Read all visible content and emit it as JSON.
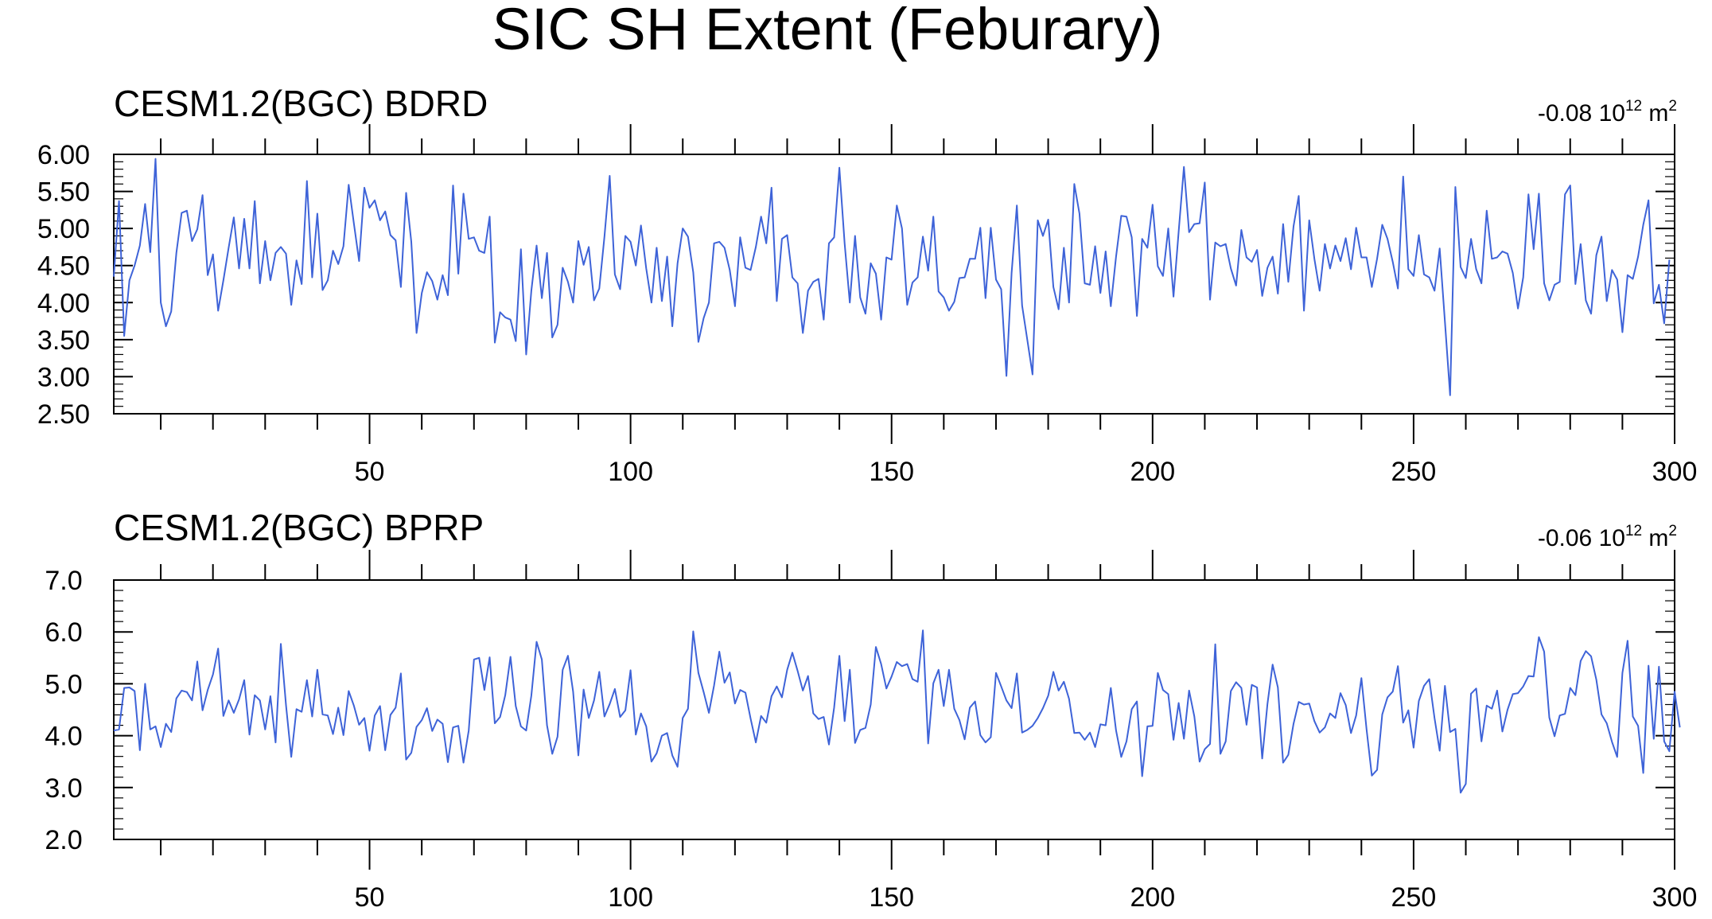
{
  "figure": {
    "title": "SIC SH Extent (Feburary)"
  },
  "chart_data": [
    {
      "type": "line",
      "title": "CESM1.2(BGC) BDRD",
      "annotation": {
        "value": "-0.08",
        "unit_base": "10",
        "unit_exp": "12",
        "unit_suffix": "m",
        "unit_suffix_exp": "2"
      },
      "xlabel": "",
      "ylabel": "",
      "xlim": [
        1,
        300
      ],
      "ylim": [
        2.5,
        6.0
      ],
      "yticks": [
        "2.50",
        "3.00",
        "3.50",
        "4.00",
        "4.50",
        "5.00",
        "5.50",
        "6.00"
      ],
      "ytick_values": [
        2.5,
        3.0,
        3.5,
        4.0,
        4.5,
        5.0,
        5.5,
        6.0
      ],
      "xticks": [
        "50",
        "100",
        "150",
        "200",
        "250",
        "300"
      ],
      "xtick_values": [
        50,
        100,
        150,
        200,
        250,
        300
      ],
      "grid": false,
      "line_color": "#3e63d8",
      "x_start": 1,
      "values": [
        4.35,
        5.37,
        3.55,
        4.3,
        4.5,
        4.77,
        5.33,
        4.68,
        5.94,
        4.0,
        3.68,
        3.88,
        4.67,
        5.21,
        5.24,
        4.83,
        4.99,
        5.45,
        4.37,
        4.65,
        3.89,
        4.3,
        4.74,
        5.15,
        4.46,
        5.13,
        4.46,
        5.37,
        4.26,
        4.83,
        4.3,
        4.67,
        4.75,
        4.66,
        3.97,
        4.57,
        4.25,
        5.64,
        4.34,
        5.2,
        4.17,
        4.3,
        4.7,
        4.52,
        4.76,
        5.59,
        5.07,
        4.56,
        5.55,
        5.28,
        5.38,
        5.11,
        5.23,
        4.91,
        4.84,
        4.21,
        5.48,
        4.82,
        3.59,
        4.13,
        4.41,
        4.29,
        4.04,
        4.37,
        4.1,
        5.58,
        4.39,
        5.47,
        4.86,
        4.88,
        4.7,
        4.67,
        5.16,
        3.46,
        3.87,
        3.8,
        3.77,
        3.48,
        4.72,
        3.3,
        4.16,
        4.77,
        4.06,
        4.67,
        3.53,
        3.7,
        4.47,
        4.28,
        4.0,
        4.83,
        4.51,
        4.75,
        4.03,
        4.19,
        4.89,
        5.71,
        4.38,
        4.18,
        4.9,
        4.82,
        4.5,
        5.04,
        4.46,
        4.0,
        4.74,
        4.02,
        4.62,
        3.68,
        4.53,
        5.0,
        4.89,
        4.41,
        3.47,
        3.79,
        4.0,
        4.8,
        4.82,
        4.74,
        4.44,
        3.95,
        4.88,
        4.47,
        4.44,
        4.75,
        5.16,
        4.8,
        5.55,
        4.02,
        4.86,
        4.91,
        4.34,
        4.26,
        3.59,
        4.16,
        4.28,
        4.32,
        3.77,
        4.8,
        4.88,
        5.82,
        4.8,
        4.0,
        4.9,
        4.07,
        3.85,
        4.53,
        4.39,
        3.77,
        4.61,
        4.58,
        5.31,
        5.0,
        3.97,
        4.27,
        4.34,
        4.89,
        4.43,
        5.16,
        4.15,
        4.07,
        3.89,
        4.01,
        4.33,
        4.34,
        4.59,
        4.59,
        5.01,
        4.06,
        5.01,
        4.31,
        4.18,
        3.01,
        4.4,
        5.31,
        3.96,
        3.5,
        3.03,
        5.11,
        4.9,
        5.12,
        4.21,
        3.91,
        4.74,
        4.0,
        5.6,
        5.2,
        4.26,
        4.24,
        4.76,
        4.13,
        4.69,
        3.95,
        4.62,
        5.17,
        5.16,
        4.88,
        3.82,
        4.86,
        4.74,
        5.32,
        4.49,
        4.36,
        5.0,
        4.08,
        4.96,
        5.83,
        4.95,
        5.06,
        5.07,
        5.62,
        4.04,
        4.81,
        4.76,
        4.79,
        4.46,
        4.23,
        4.98,
        4.61,
        4.55,
        4.71,
        4.09,
        4.47,
        4.62,
        4.12,
        5.06,
        4.28,
        5.03,
        5.44,
        3.89,
        5.11,
        4.59,
        4.16,
        4.79,
        4.46,
        4.77,
        4.56,
        4.87,
        4.45,
        5.01,
        4.61,
        4.61,
        4.21,
        4.59,
        5.05,
        4.86,
        4.55,
        4.19,
        5.7,
        4.45,
        4.36,
        4.91,
        4.38,
        4.34,
        4.16,
        4.73,
        3.74,
        2.75,
        5.56,
        4.48,
        4.33,
        4.86,
        4.45,
        4.26,
        5.24,
        4.59,
        4.61,
        4.69,
        4.66,
        4.4,
        3.92,
        4.34,
        5.46,
        4.72,
        5.47,
        4.26,
        4.03,
        4.24,
        4.28,
        5.46,
        5.58,
        4.25,
        4.79,
        4.03,
        3.85,
        4.64,
        4.89,
        4.02,
        4.44,
        4.31,
        3.6,
        4.37,
        4.32,
        4.62,
        5.05,
        5.38,
        3.99,
        4.24,
        3.72,
        4.58
      ]
    },
    {
      "type": "line",
      "title": "CESM1.2(BGC) BPRP",
      "annotation": {
        "value": "-0.06",
        "unit_base": "10",
        "unit_exp": "12",
        "unit_suffix": "m",
        "unit_suffix_exp": "2"
      },
      "xlabel": "",
      "ylabel": "",
      "xlim": [
        1,
        300
      ],
      "ylim": [
        2.0,
        7.0
      ],
      "yticks": [
        "2.0",
        "3.0",
        "4.0",
        "5.0",
        "6.0",
        "7.0"
      ],
      "ytick_values": [
        2.0,
        3.0,
        4.0,
        5.0,
        6.0,
        7.0
      ],
      "xticks": [
        "50",
        "100",
        "150",
        "200",
        "250",
        "300"
      ],
      "xtick_values": [
        50,
        100,
        150,
        200,
        250,
        300
      ],
      "grid": false,
      "line_color": "#3e63d8",
      "x_start": 1,
      "values": [
        4.1,
        4.12,
        4.92,
        4.93,
        4.86,
        3.72,
        5.0,
        4.12,
        4.18,
        3.78,
        4.23,
        4.07,
        4.72,
        4.87,
        4.84,
        4.68,
        5.43,
        4.49,
        4.88,
        5.18,
        5.68,
        4.38,
        4.68,
        4.44,
        4.7,
        5.07,
        4.02,
        4.78,
        4.68,
        4.12,
        4.76,
        3.87,
        5.77,
        4.59,
        3.59,
        4.51,
        4.46,
        5.07,
        4.37,
        5.27,
        4.41,
        4.39,
        4.03,
        4.54,
        4.01,
        4.86,
        4.58,
        4.21,
        4.34,
        3.71,
        4.39,
        4.57,
        3.72,
        4.4,
        4.54,
        5.2,
        3.54,
        3.67,
        4.17,
        4.3,
        4.53,
        4.09,
        4.31,
        4.23,
        3.49,
        4.16,
        4.19,
        3.48,
        4.1,
        5.47,
        5.5,
        4.88,
        5.51,
        4.24,
        4.36,
        4.78,
        5.52,
        4.57,
        4.18,
        4.1,
        4.77,
        5.81,
        5.47,
        4.2,
        3.65,
        3.98,
        5.27,
        5.54,
        4.85,
        3.62,
        4.89,
        4.34,
        4.68,
        5.23,
        4.37,
        4.61,
        4.9,
        4.36,
        4.49,
        5.26,
        4.02,
        4.43,
        4.18,
        3.5,
        3.66,
        4.0,
        4.05,
        3.62,
        3.4,
        4.34,
        4.52,
        6.01,
        5.21,
        4.84,
        4.44,
        4.97,
        5.62,
        5.02,
        5.22,
        4.62,
        4.88,
        4.83,
        4.33,
        3.87,
        4.38,
        4.25,
        4.76,
        4.95,
        4.74,
        5.27,
        5.6,
        5.25,
        4.87,
        5.15,
        4.43,
        4.32,
        4.36,
        3.83,
        4.54,
        5.54,
        4.28,
        5.27,
        3.86,
        4.11,
        4.15,
        4.6,
        5.71,
        5.38,
        4.91,
        5.14,
        5.42,
        5.34,
        5.38,
        5.09,
        5.04,
        6.03,
        3.85,
        5.01,
        5.27,
        4.57,
        5.27,
        4.52,
        4.3,
        3.93,
        4.54,
        4.66,
        4.01,
        3.87,
        3.97,
        5.21,
        4.95,
        4.68,
        4.53,
        5.2,
        4.06,
        4.11,
        4.19,
        4.34,
        4.53,
        4.77,
        5.23,
        4.87,
        5.04,
        4.71,
        4.05,
        4.06,
        3.92,
        4.06,
        3.78,
        4.22,
        4.2,
        4.92,
        4.1,
        3.59,
        3.89,
        4.51,
        4.66,
        3.22,
        4.18,
        4.19,
        5.21,
        4.88,
        4.8,
        3.92,
        4.63,
        3.94,
        4.87,
        4.37,
        3.5,
        3.74,
        3.84,
        5.76,
        3.65,
        3.89,
        4.86,
        5.03,
        4.92,
        4.21,
        4.98,
        4.93,
        3.56,
        4.61,
        5.37,
        4.93,
        3.48,
        3.63,
        4.23,
        4.65,
        4.6,
        4.62,
        4.28,
        4.06,
        4.16,
        4.43,
        4.34,
        4.82,
        4.59,
        4.05,
        4.39,
        5.11,
        4.12,
        3.23,
        3.34,
        4.41,
        4.74,
        4.85,
        5.34,
        4.25,
        4.49,
        3.77,
        4.67,
        4.96,
        5.09,
        4.34,
        3.71,
        4.96,
        4.07,
        4.13,
        2.9,
        3.07,
        4.81,
        4.91,
        3.89,
        4.58,
        4.52,
        4.87,
        4.08,
        4.5,
        4.8,
        4.82,
        4.95,
        5.15,
        5.14,
        5.9,
        5.62,
        4.35,
        3.99,
        4.39,
        4.42,
        4.92,
        4.78,
        5.44,
        5.63,
        5.53,
        5.08,
        4.41,
        4.24,
        3.88,
        3.59,
        5.21,
        5.83,
        4.37,
        4.19,
        3.28,
        5.35,
        3.94,
        5.33,
        3.89,
        3.7,
        4.85,
        4.16
      ]
    }
  ]
}
